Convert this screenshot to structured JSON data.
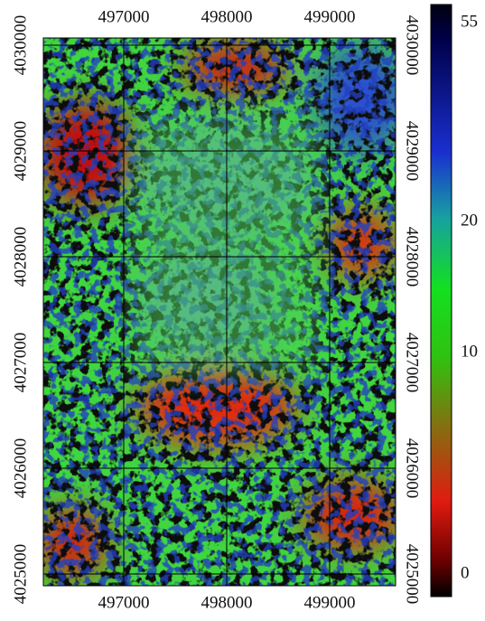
{
  "map": {
    "x_ticks": [
      497000,
      498000,
      499000
    ],
    "y_ticks": [
      4025000,
      4026000,
      4027000,
      4028000,
      4029000,
      4030000
    ],
    "colorbar": {
      "ticks": [
        0,
        10,
        20,
        55
      ]
    }
  }
}
